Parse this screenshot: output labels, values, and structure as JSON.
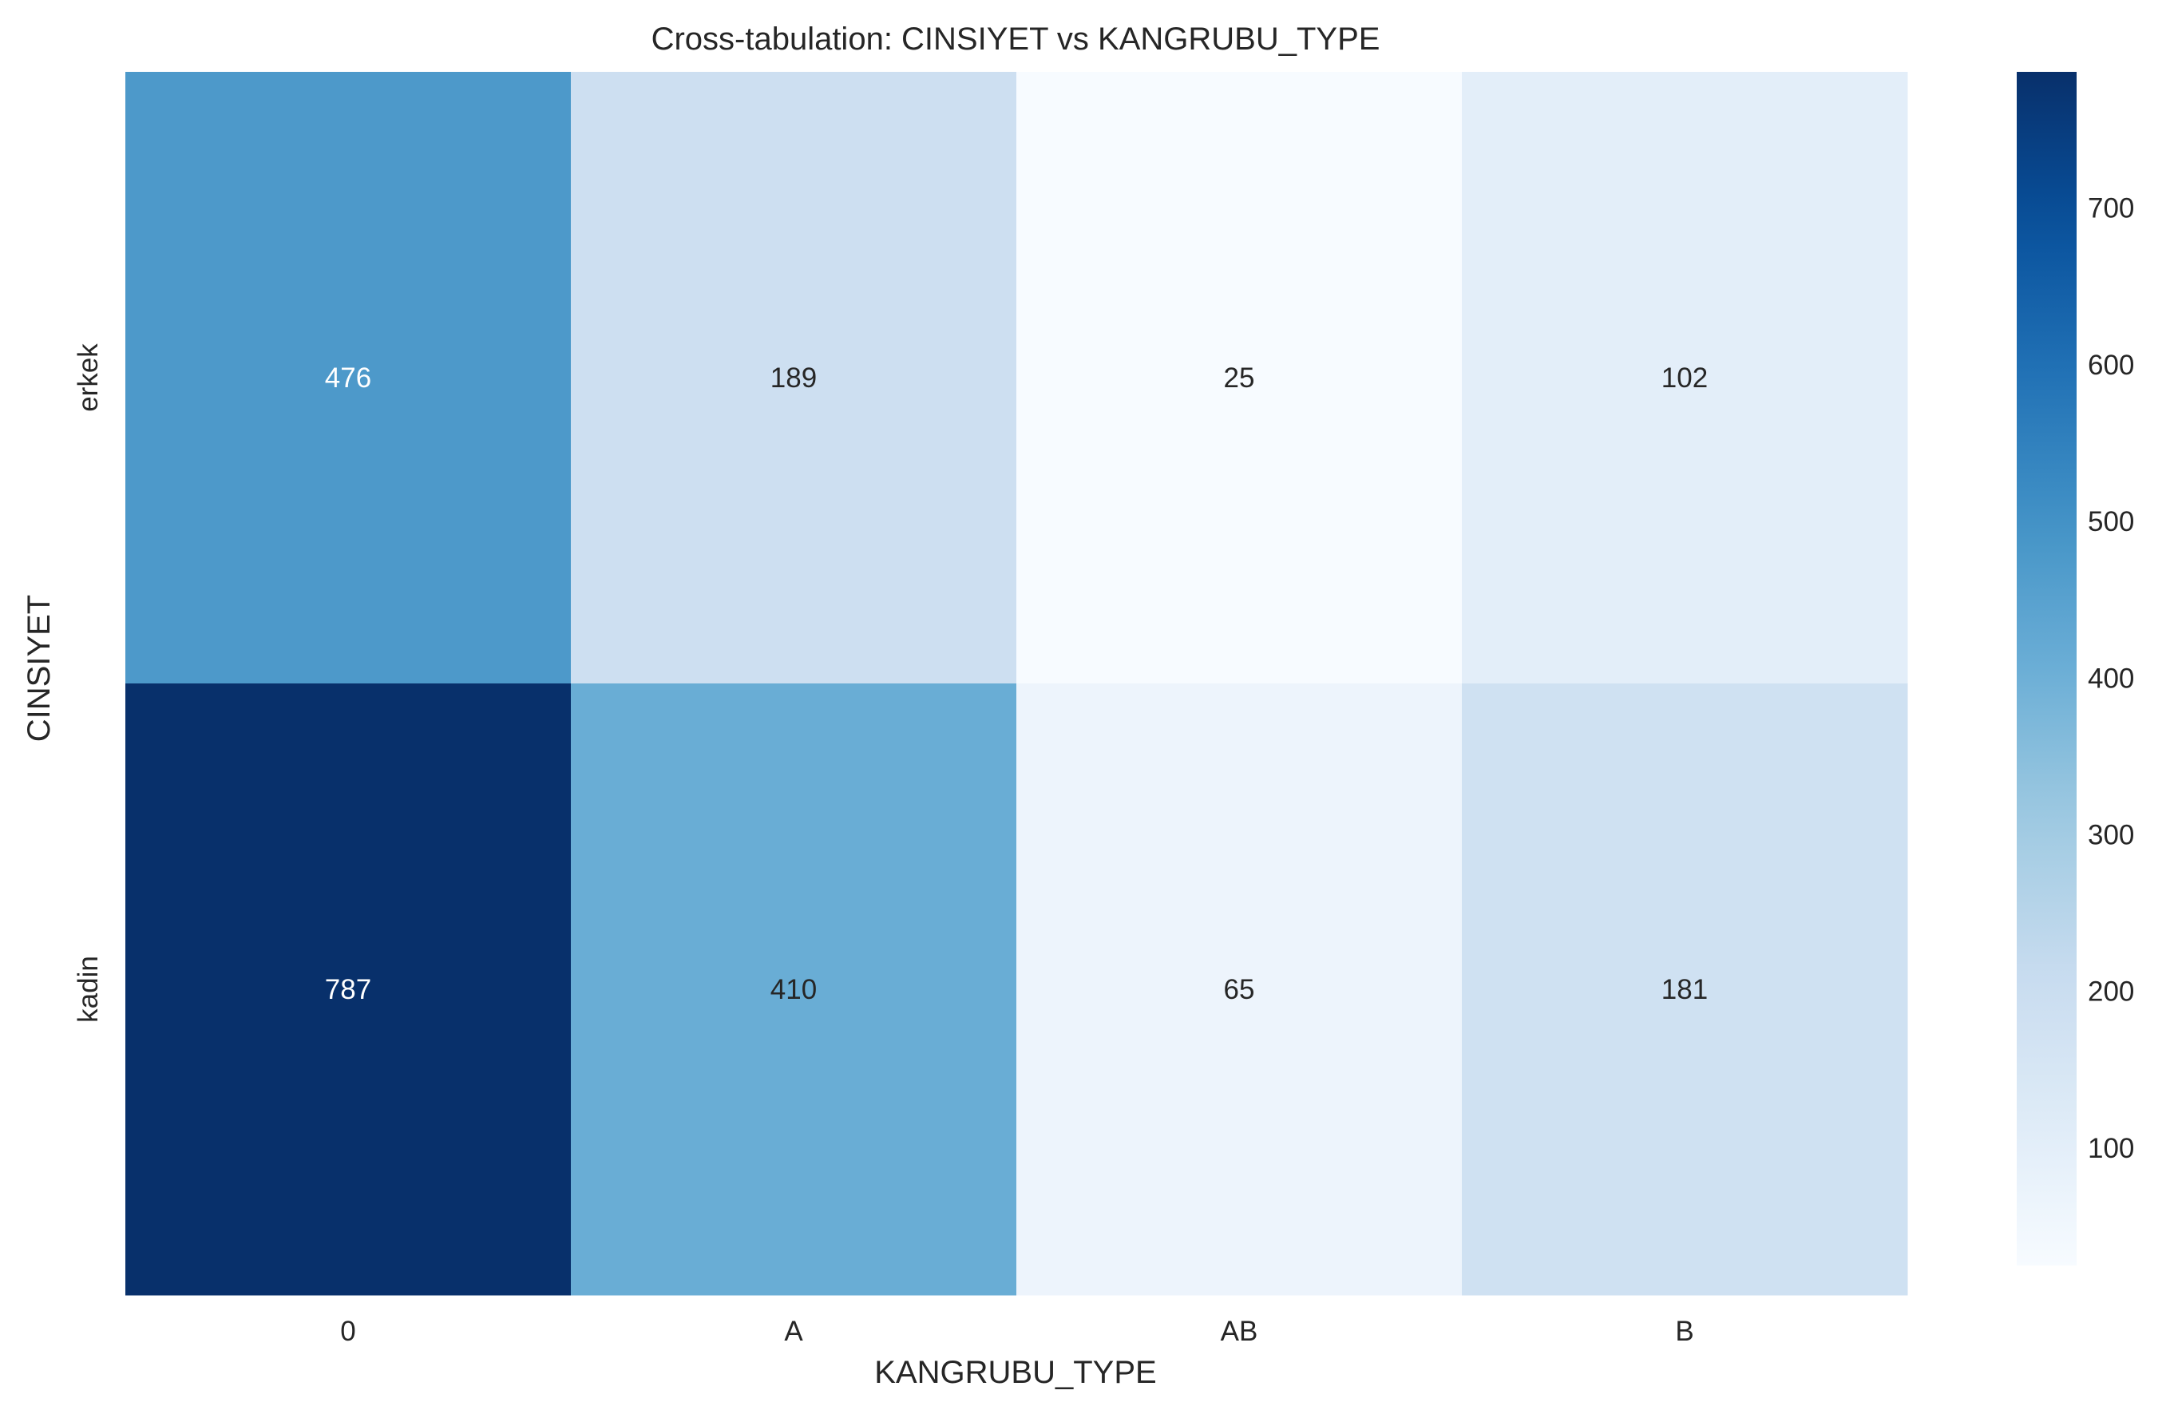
{
  "chart_data": {
    "type": "heatmap",
    "title": "Cross-tabulation: CINSIYET vs KANGRUBU_TYPE",
    "xlabel": "KANGRUBU_TYPE",
    "ylabel": "CINSIYET",
    "x_categories": [
      "0",
      "A",
      "AB",
      "B"
    ],
    "y_categories": [
      "erkek",
      "kadin"
    ],
    "values": [
      [
        476,
        189,
        25,
        102
      ],
      [
        787,
        410,
        65,
        181
      ]
    ],
    "colormap": "Blues",
    "color_range": [
      25,
      787
    ],
    "colorbar_ticks": [
      100,
      200,
      300,
      400,
      500,
      600,
      700
    ],
    "colorbar": true,
    "annotations": true,
    "grid": false
  }
}
